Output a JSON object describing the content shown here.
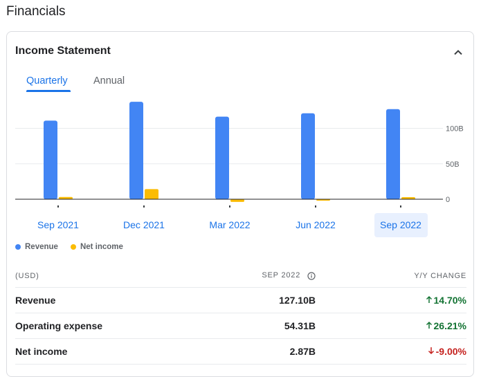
{
  "section": {
    "title": "Financials"
  },
  "card": {
    "title": "Income Statement",
    "collapse_icon": "chevron-up-icon"
  },
  "tabs": [
    {
      "label": "Quarterly",
      "active": true
    },
    {
      "label": "Annual",
      "active": false
    }
  ],
  "colors": {
    "revenue": "#4285f4",
    "net_income": "#fbbc04",
    "accent": "#1a73e8",
    "positive": "#137333",
    "negative": "#c5221f"
  },
  "chart_data": {
    "type": "bar",
    "categories": [
      "Sep 2021",
      "Dec 2021",
      "Mar 2022",
      "Jun 2022",
      "Sep 2022"
    ],
    "selected_category": "Sep 2022",
    "series": [
      {
        "name": "Revenue",
        "values": [
          110.81,
          137.41,
          116.44,
          121.23,
          127.1
        ]
      },
      {
        "name": "Net income",
        "values": [
          3.16,
          14.32,
          -3.84,
          -2.03,
          2.87
        ]
      }
    ],
    "ylim": [
      -5,
      140
    ],
    "yticks": [
      0,
      50,
      100
    ],
    "ytick_labels": [
      "0",
      "50B",
      "100B"
    ],
    "legend_position": "bottom-left",
    "grid": true
  },
  "legend": [
    {
      "label": "Revenue",
      "color": "#4285f4"
    },
    {
      "label": "Net income",
      "color": "#fbbc04"
    }
  ],
  "table": {
    "header": {
      "label": "(USD)",
      "period": "SEP 2022",
      "change": "Y/Y CHANGE",
      "info_icon": "info-icon"
    },
    "rows": [
      {
        "label": "Revenue",
        "value": "127.10B",
        "change": "14.70%",
        "direction": "up"
      },
      {
        "label": "Operating expense",
        "value": "54.31B",
        "change": "26.21%",
        "direction": "up"
      },
      {
        "label": "Net income",
        "value": "2.87B",
        "change": "-9.00%",
        "direction": "down"
      }
    ]
  }
}
